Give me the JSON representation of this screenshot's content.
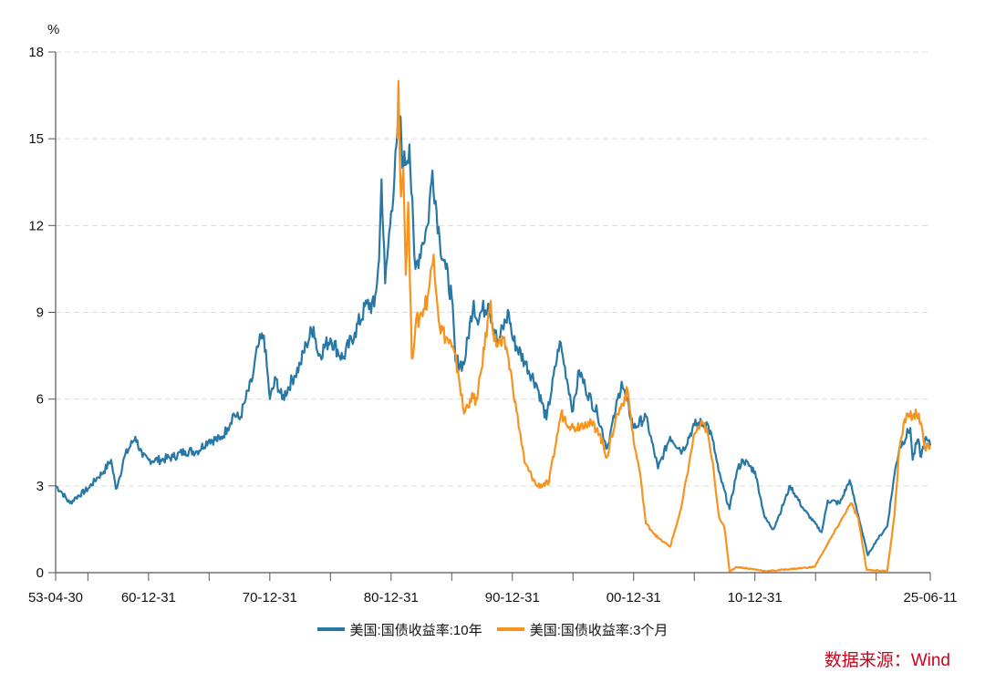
{
  "chart_data": {
    "type": "line",
    "title": "",
    "ylabel": "%",
    "xlabel": "",
    "ylim": [
      0,
      18
    ],
    "yticks": [
      0,
      3,
      6,
      9,
      12,
      15,
      18
    ],
    "xlim": [
      1953.33,
      2025.45
    ],
    "xtick_positions": [
      1953.33,
      1955.99,
      1960.99,
      1965.99,
      1970.99,
      1975.99,
      1980.99,
      1985.99,
      1990.99,
      1995.99,
      2000.99,
      2005.99,
      2010.99,
      2015.99,
      2020.99,
      2025.45
    ],
    "xtick_labels": [
      {
        "x": 1953.33,
        "label": "53-04-30"
      },
      {
        "x": 1960.99,
        "label": "60-12-31"
      },
      {
        "x": 1970.99,
        "label": "70-12-31"
      },
      {
        "x": 1980.99,
        "label": "80-12-31"
      },
      {
        "x": 1990.99,
        "label": "90-12-31"
      },
      {
        "x": 2000.99,
        "label": "00-12-31"
      },
      {
        "x": 2010.99,
        "label": "10-12-31"
      },
      {
        "x": 2025.45,
        "label": "25-06-11"
      }
    ],
    "grid": true,
    "legend_position": "bottom-center",
    "series": [
      {
        "name": "美国:国债收益率:10年",
        "color": "#2878a6",
        "x": [
          1953.33,
          1953.8,
          1954.5,
          1955.0,
          1956.0,
          1956.8,
          1957.3,
          1957.9,
          1958.3,
          1958.6,
          1959.0,
          1959.9,
          1960.5,
          1961.0,
          1962.0,
          1963.0,
          1964.0,
          1965.0,
          1966.0,
          1966.9,
          1967.5,
          1968.0,
          1968.5,
          1969.0,
          1969.5,
          1970.0,
          1970.5,
          1971.0,
          1971.5,
          1972.0,
          1973.0,
          1973.5,
          1974.0,
          1974.6,
          1975.0,
          1976.0,
          1977.0,
          1978.0,
          1979.0,
          1979.6,
          1980.0,
          1980.2,
          1980.5,
          1981.0,
          1981.7,
          1982.0,
          1982.5,
          1982.9,
          1983.0,
          1983.5,
          1984.0,
          1984.4,
          1985.0,
          1985.5,
          1986.0,
          1986.3,
          1987.0,
          1987.8,
          1988.0,
          1989.0,
          1989.8,
          1990.0,
          1990.7,
          1991.0,
          1992.0,
          1993.0,
          1993.8,
          1994.9,
          1996.0,
          1996.5,
          1997.0,
          1998.0,
          1998.8,
          1999.5,
          2000.0,
          2001.0,
          2002.0,
          2003.0,
          2004.0,
          2005.0,
          2006.0,
          2007.0,
          2007.5,
          2008.0,
          2008.9,
          2009.5,
          2010.0,
          2011.0,
          2011.8,
          2012.5,
          2013.0,
          2013.9,
          2015.0,
          2016.5,
          2017.0,
          2018.0,
          2018.8,
          2019.5,
          2020.3,
          2021.0,
          2021.9,
          2022.5,
          2022.9,
          2023.8,
          2024.0,
          2024.4,
          2024.7,
          2025.0,
          2025.45
        ],
        "values": [
          3.0,
          2.8,
          2.4,
          2.6,
          2.9,
          3.3,
          3.5,
          3.9,
          2.9,
          3.3,
          4.0,
          4.7,
          4.0,
          3.9,
          3.9,
          4.0,
          4.2,
          4.2,
          4.6,
          4.6,
          5.0,
          5.5,
          5.3,
          6.0,
          6.6,
          7.8,
          8.2,
          6.0,
          6.7,
          6.0,
          6.8,
          7.2,
          7.9,
          8.5,
          7.5,
          8.1,
          7.4,
          8.3,
          9.3,
          9.2,
          10.8,
          13.6,
          10.0,
          12.5,
          15.8,
          14.0,
          14.8,
          11.0,
          10.5,
          11.3,
          12.0,
          13.9,
          11.5,
          10.5,
          9.5,
          7.3,
          7.2,
          9.4,
          8.8,
          9.3,
          7.9,
          8.2,
          9.0,
          8.1,
          7.3,
          6.5,
          5.3,
          8.0,
          5.6,
          7.0,
          6.4,
          5.5,
          4.3,
          5.6,
          6.6,
          5.0,
          5.4,
          3.6,
          4.7,
          4.2,
          5.1,
          5.2,
          4.6,
          3.5,
          2.2,
          3.5,
          3.9,
          3.5,
          1.9,
          1.5,
          2.0,
          3.0,
          2.2,
          1.4,
          2.5,
          2.4,
          3.2,
          2.0,
          0.6,
          1.1,
          1.6,
          3.4,
          4.3,
          5.0,
          3.9,
          4.6,
          4.0,
          4.6,
          4.4
        ]
      },
      {
        "name": "美国:国债收益率:3个月",
        "color": "#f7931e",
        "x": [
          1981.5,
          1981.6,
          1981.8,
          1982.0,
          1982.2,
          1982.4,
          1982.7,
          1983.0,
          1983.5,
          1984.0,
          1984.5,
          1985.0,
          1986.0,
          1986.5,
          1987.0,
          1987.5,
          1988.1,
          1989.2,
          1989.5,
          1990.5,
          1991.0,
          1992.0,
          1993.0,
          1994.0,
          1995.0,
          1996.0,
          1997.0,
          1998.0,
          1998.8,
          1999.5,
          2000.5,
          2001.0,
          2001.5,
          2002.0,
          2003.0,
          2004.0,
          2004.9,
          2006.0,
          2006.5,
          2007.0,
          2007.6,
          2008.0,
          2008.5,
          2008.9,
          2009.5,
          2012.0,
          2015.9,
          2017.0,
          2018.9,
          2019.5,
          2020.2,
          2021.9,
          2022.5,
          2022.9,
          2023.5,
          2024.0,
          2024.5,
          2025.0,
          2025.45
        ],
        "values": [
          15.0,
          17.0,
          13.0,
          14.0,
          10.3,
          12.8,
          7.4,
          8.5,
          9.0,
          9.5,
          11.0,
          8.5,
          7.8,
          7.0,
          5.5,
          6.0,
          6.0,
          9.4,
          8.0,
          7.8,
          6.5,
          3.8,
          3.0,
          3.1,
          5.5,
          5.0,
          5.2,
          5.0,
          4.0,
          5.3,
          6.3,
          4.5,
          3.5,
          1.7,
          1.2,
          0.9,
          2.2,
          4.8,
          5.1,
          5.0,
          3.5,
          2.0,
          1.5,
          0.05,
          0.2,
          0.05,
          0.2,
          1.0,
          2.4,
          1.9,
          0.1,
          0.05,
          2.0,
          4.3,
          5.5,
          5.4,
          5.5,
          4.3,
          4.4
        ]
      }
    ]
  },
  "source": "数据来源：Wind"
}
